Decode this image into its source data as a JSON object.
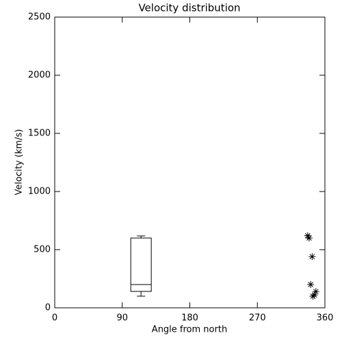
{
  "chart_data": {
    "type": "box",
    "title": "Velocity distribution",
    "x_label": "Angle from north",
    "y_label": "Velocity (km/s)",
    "xlim": [
      0,
      360
    ],
    "xticks": [
      0,
      90,
      180,
      270,
      360
    ],
    "ylim": [
      0,
      2500
    ],
    "yticks": [
      0,
      500,
      1000,
      1500,
      2000,
      2500
    ],
    "color": "#000000",
    "boxes": [
      {
        "x": 115,
        "whisker_low": 100,
        "q1": 141,
        "median": 200,
        "q3": 600,
        "whisker_high": 618
      }
    ],
    "points": {
      "x": [
        337,
        339,
        343,
        341,
        348,
        346,
        344
      ],
      "y": [
        620,
        600,
        440,
        200,
        140,
        110,
        100
      ]
    }
  }
}
